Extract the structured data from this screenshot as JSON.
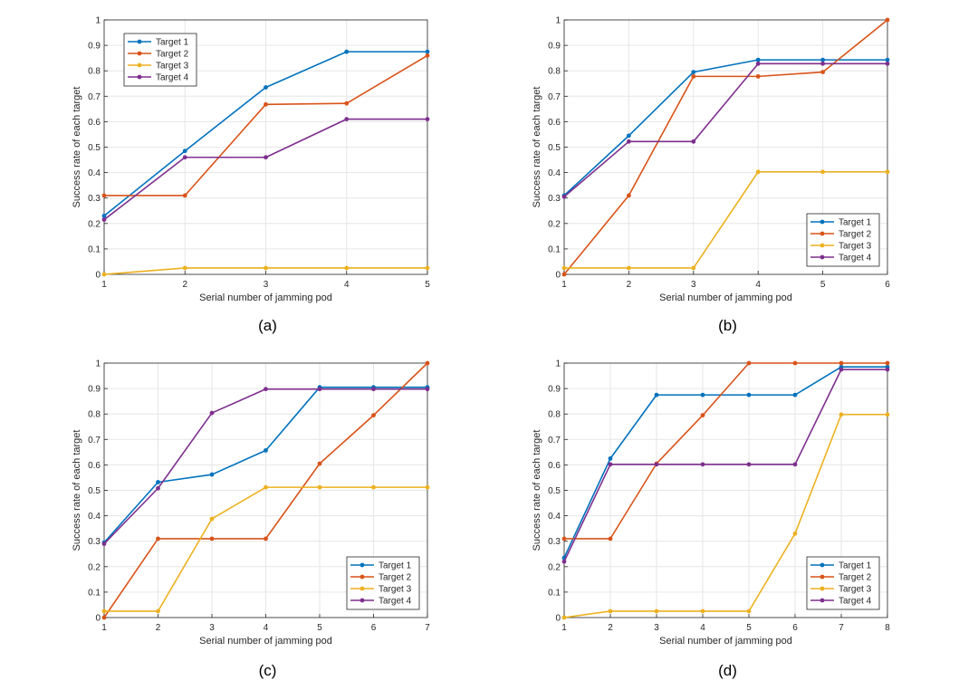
{
  "colors": {
    "series": [
      "#0072BD",
      "#D95319",
      "#EDB120",
      "#7E2F8E"
    ],
    "grid": "#e6e6e6",
    "axis": "#262626"
  },
  "chart_data": [
    {
      "type": "line",
      "caption": "(a)",
      "title": "",
      "xlabel": "Serial number of jamming pod",
      "ylabel": "Success rate of each target",
      "xlim": [
        1,
        5
      ],
      "ylim": [
        0,
        1
      ],
      "x_ticks": [
        "1",
        "2",
        "3",
        "4",
        "5"
      ],
      "y_ticks": [
        "0",
        "0.1",
        "0.2",
        "0.3",
        "0.4",
        "0.5",
        "0.6",
        "0.7",
        "0.8",
        "0.9",
        "1"
      ],
      "legend_position": "top-left",
      "x": [
        1,
        2,
        3,
        4,
        5
      ],
      "series": [
        {
          "name": "Target 1",
          "values": [
            0.23,
            0.485,
            0.735,
            0.875,
            0.875
          ]
        },
        {
          "name": "Target 2",
          "values": [
            0.31,
            0.31,
            0.668,
            0.672,
            0.86
          ]
        },
        {
          "name": "Target 3",
          "values": [
            0.0,
            0.025,
            0.025,
            0.025,
            0.025
          ]
        },
        {
          "name": "Target 4",
          "values": [
            0.215,
            0.46,
            0.46,
            0.61,
            0.61
          ]
        }
      ]
    },
    {
      "type": "line",
      "caption": "(b)",
      "title": "",
      "xlabel": "Serial number of jamming pod",
      "ylabel": "Success rate of each target",
      "xlim": [
        1,
        6
      ],
      "ylim": [
        0,
        1
      ],
      "x_ticks": [
        "1",
        "2",
        "3",
        "4",
        "5",
        "6"
      ],
      "y_ticks": [
        "0",
        "0.1",
        "0.2",
        "0.3",
        "0.4",
        "0.5",
        "0.6",
        "0.7",
        "0.8",
        "0.9",
        "1"
      ],
      "legend_position": "bottom-right",
      "x": [
        1,
        2,
        3,
        4,
        5,
        6
      ],
      "series": [
        {
          "name": "Target 1",
          "values": [
            0.31,
            0.545,
            0.795,
            0.843,
            0.843,
            0.843
          ]
        },
        {
          "name": "Target 2",
          "values": [
            0.0,
            0.31,
            0.778,
            0.778,
            0.795,
            1.0
          ]
        },
        {
          "name": "Target 3",
          "values": [
            0.025,
            0.025,
            0.025,
            0.403,
            0.403,
            0.403
          ]
        },
        {
          "name": "Target 4",
          "values": [
            0.305,
            0.522,
            0.522,
            0.828,
            0.828,
            0.828
          ]
        }
      ]
    },
    {
      "type": "line",
      "caption": "(c)",
      "title": "",
      "xlabel": "Serial number of jamming pod",
      "ylabel": "Success rate of each target",
      "xlim": [
        1,
        7
      ],
      "ylim": [
        0,
        1
      ],
      "x_ticks": [
        "1",
        "2",
        "3",
        "4",
        "5",
        "6",
        "7"
      ],
      "y_ticks": [
        "0",
        "0.1",
        "0.2",
        "0.3",
        "0.4",
        "0.5",
        "0.6",
        "0.7",
        "0.8",
        "0.9",
        "1"
      ],
      "legend_position": "bottom-right",
      "x": [
        1,
        2,
        3,
        4,
        5,
        6,
        7
      ],
      "series": [
        {
          "name": "Target 1",
          "values": [
            0.295,
            0.532,
            0.562,
            0.657,
            0.905,
            0.905,
            0.905
          ]
        },
        {
          "name": "Target 2",
          "values": [
            0.0,
            0.31,
            0.31,
            0.31,
            0.605,
            0.795,
            1.0
          ]
        },
        {
          "name": "Target 3",
          "values": [
            0.025,
            0.025,
            0.388,
            0.512,
            0.512,
            0.512,
            0.512
          ]
        },
        {
          "name": "Target 4",
          "values": [
            0.29,
            0.508,
            0.804,
            0.898,
            0.898,
            0.898,
            0.898
          ]
        }
      ]
    },
    {
      "type": "line",
      "caption": "(d)",
      "title": "",
      "xlabel": "Serial number of jamming pod",
      "ylabel": "Success rate of each target",
      "xlim": [
        1,
        8
      ],
      "ylim": [
        0,
        1
      ],
      "x_ticks": [
        "1",
        "2",
        "3",
        "4",
        "5",
        "6",
        "7",
        "8"
      ],
      "y_ticks": [
        "0",
        "0.1",
        "0.2",
        "0.3",
        "0.4",
        "0.5",
        "0.6",
        "0.7",
        "0.8",
        "0.9",
        "1"
      ],
      "legend_position": "bottom-right",
      "x": [
        1,
        2,
        3,
        4,
        5,
        6,
        7,
        8
      ],
      "series": [
        {
          "name": "Target 1",
          "values": [
            0.235,
            0.625,
            0.875,
            0.875,
            0.875,
            0.875,
            0.985,
            0.985
          ]
        },
        {
          "name": "Target 2",
          "values": [
            0.31,
            0.31,
            0.605,
            0.795,
            1.0,
            1.0,
            1.0,
            1.0
          ]
        },
        {
          "name": "Target 3",
          "values": [
            0.0,
            0.025,
            0.025,
            0.025,
            0.025,
            0.33,
            0.798,
            0.798
          ]
        },
        {
          "name": "Target 4",
          "values": [
            0.22,
            0.602,
            0.602,
            0.602,
            0.602,
            0.602,
            0.975,
            0.975
          ]
        }
      ]
    }
  ]
}
